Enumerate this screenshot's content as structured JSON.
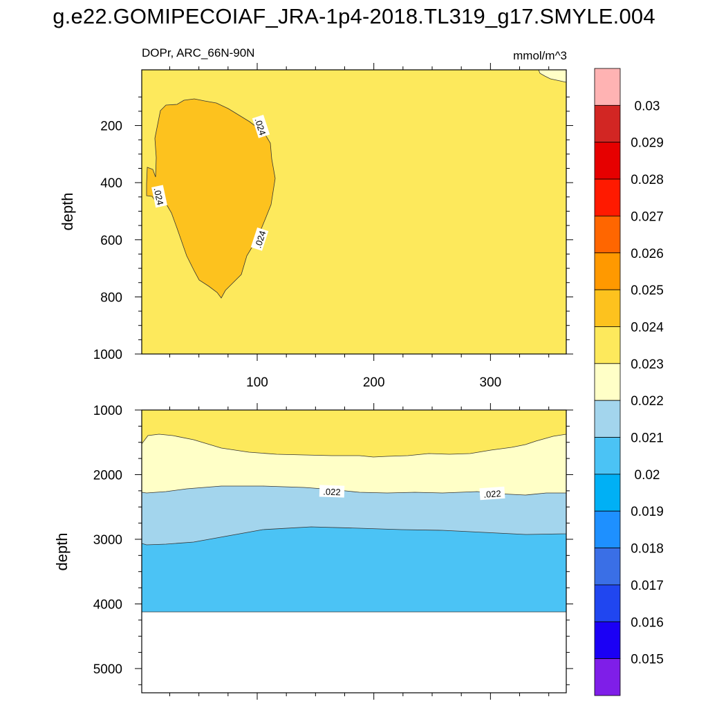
{
  "title": "g.e22.GOMIPECOIAF_JRA-1p4-2018.TL319_g17.SMYLE.004",
  "left_label": "DOPr, ARC_66N-90N",
  "units": "mmol/m^3",
  "contour_labels": [
    ".024",
    ".024",
    ".024",
    ".022",
    ".022"
  ],
  "chart_data": [
    {
      "type": "heatmap",
      "panel": "upper",
      "variable": "DOPr",
      "region": "ARC_66N-90N",
      "units": "mmol/m^3",
      "xlabel": "",
      "ylabel": "depth",
      "xlim": [
        1,
        365
      ],
      "ylim": [
        1000,
        5
      ],
      "xticks": [
        100,
        200,
        300
      ],
      "yticks": [
        200,
        400,
        600,
        800,
        1000
      ],
      "background_range": [
        0.023,
        0.024
      ],
      "regions": [
        {
          "range": [
            0.024,
            0.025
          ],
          "x_extent": [
            5,
            120
          ],
          "depth_extent": [
            95,
            805
          ],
          "label": ".024"
        },
        {
          "range": [
            0.022,
            0.023
          ],
          "x_extent": [
            355,
            365
          ],
          "depth_extent": [
            5,
            50
          ]
        }
      ]
    },
    {
      "type": "heatmap",
      "panel": "lower",
      "xlabel": "",
      "ylabel": "depth",
      "xlim": [
        1,
        365
      ],
      "ylim": [
        5375,
        1000
      ],
      "yticks": [
        1000,
        2000,
        3000,
        4000,
        5000
      ],
      "bottom_of_data_depth": 4125,
      "contours": [
        {
          "level": 0.023,
          "x": [
            1,
            50,
            100,
            150,
            200,
            250,
            300,
            365
          ],
          "depth": [
            1500,
            1430,
            1570,
            1680,
            1710,
            1650,
            1540,
            1370
          ]
        },
        {
          "level": 0.022,
          "label": ".022",
          "x": [
            1,
            50,
            100,
            150,
            200,
            250,
            300,
            365
          ],
          "depth": [
            2250,
            2180,
            2140,
            2170,
            2220,
            2250,
            2280,
            2270
          ]
        },
        {
          "level": 0.021,
          "x": [
            1,
            50,
            100,
            150,
            200,
            250,
            300,
            365
          ],
          "depth": [
            3050,
            3010,
            2850,
            2810,
            2830,
            2840,
            2860,
            2900
          ]
        }
      ],
      "bands": [
        {
          "range": [
            0.023,
            0.024
          ],
          "depth_extent": [
            1000,
            1500
          ]
        },
        {
          "range": [
            0.022,
            0.023
          ],
          "depth_extent": [
            1400,
            2250
          ]
        },
        {
          "range": [
            0.021,
            0.022
          ],
          "depth_extent": [
            2150,
            3050
          ]
        },
        {
          "range": [
            0.02,
            0.021
          ],
          "depth_extent": [
            2800,
            4125
          ]
        }
      ]
    }
  ],
  "colorbar": {
    "labels": [
      "0.03",
      "0.029",
      "0.028",
      "0.027",
      "0.026",
      "0.025",
      "0.024",
      "0.023",
      "0.022",
      "0.021",
      "0.02",
      "0.019",
      "0.018",
      "0.017",
      "0.016",
      "0.015"
    ],
    "values": [
      0.03,
      0.029,
      0.028,
      0.027,
      0.026,
      0.025,
      0.024,
      0.023,
      0.022,
      0.021,
      0.02,
      0.019,
      0.018,
      0.017,
      0.016,
      0.015
    ],
    "colors_top_to_bottom": [
      "#ffb3b3",
      "#d22623",
      "#e60000",
      "#ff1a00",
      "#ff6600",
      "#ff9900",
      "#fdc21e",
      "#fde95c",
      "#ffffc7",
      "#a3d5ed",
      "#4bc3f5",
      "#00b0f5",
      "#1e90ff",
      "#3a6fe6",
      "#2046f0",
      "#1b00f5",
      "#7f1ee8"
    ]
  },
  "colors": {
    "level_023_024": "#fde95c",
    "level_024_025": "#fdc21e",
    "level_022_023": "#ffffc7",
    "level_021_022": "#a3d5ed",
    "level_020_021": "#4bc3f5"
  }
}
